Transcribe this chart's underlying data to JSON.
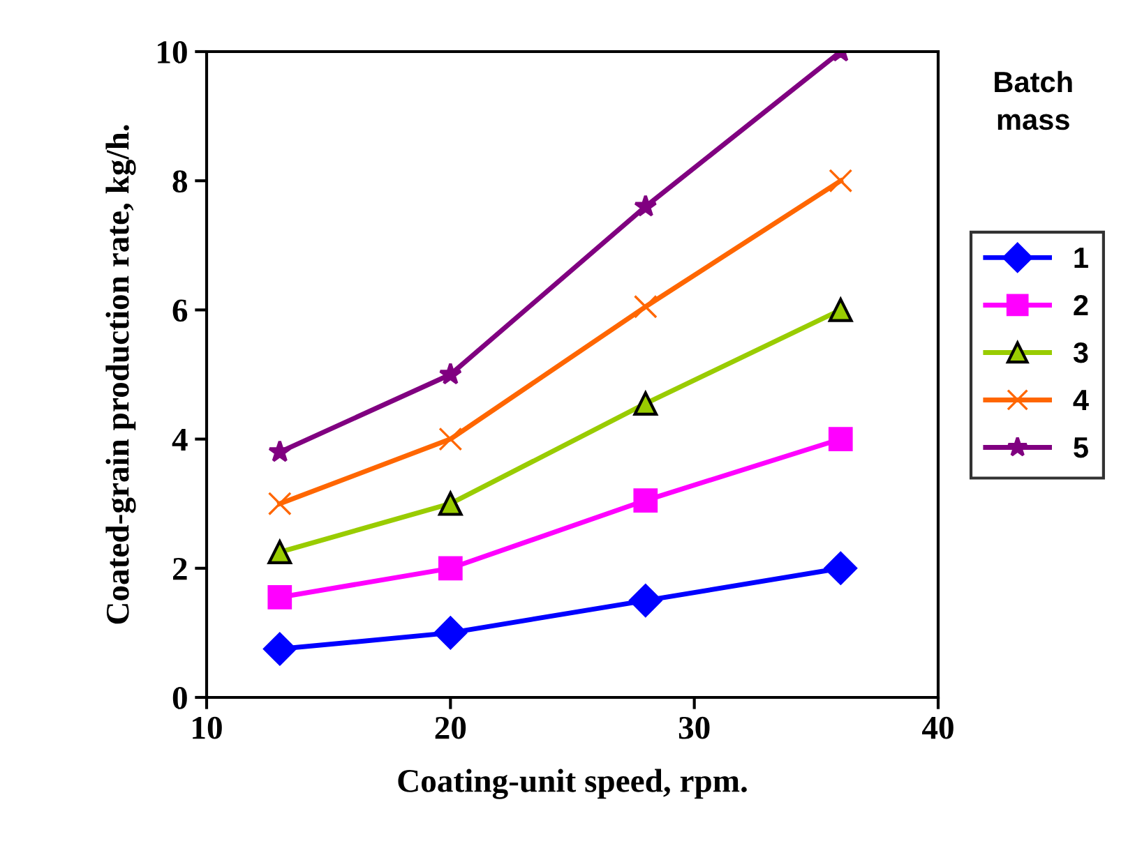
{
  "chart_data": {
    "type": "line",
    "xlabel": "Coating-unit speed, rpm.",
    "ylabel": "Coated-grain production rate, kg/h.",
    "legend_title": "Batch mass",
    "x": [
      13,
      20,
      28,
      36
    ],
    "series": [
      {
        "name": "1",
        "color": "#0000ff",
        "marker": "diamond",
        "values": [
          0.75,
          1.0,
          1.5,
          2.0
        ]
      },
      {
        "name": "2",
        "color": "#ff00ff",
        "marker": "square",
        "values": [
          1.55,
          2.0,
          3.05,
          4.0
        ]
      },
      {
        "name": "3",
        "color": "#99cc00",
        "marker": "triangle",
        "values": [
          2.25,
          3.0,
          4.55,
          6.0
        ]
      },
      {
        "name": "4",
        "color": "#ff6600",
        "marker": "cross",
        "values": [
          3.0,
          4.0,
          6.05,
          8.0
        ]
      },
      {
        "name": "5",
        "color": "#800080",
        "marker": "star",
        "values": [
          3.8,
          5.0,
          7.6,
          10.0
        ]
      }
    ],
    "xlim": [
      10,
      40
    ],
    "xticks": [
      10,
      20,
      30,
      40
    ],
    "ylim": [
      0,
      10
    ],
    "yticks": [
      0,
      2,
      4,
      6,
      8,
      10
    ],
    "grid": false,
    "legend": "right",
    "line_style": "solid"
  }
}
